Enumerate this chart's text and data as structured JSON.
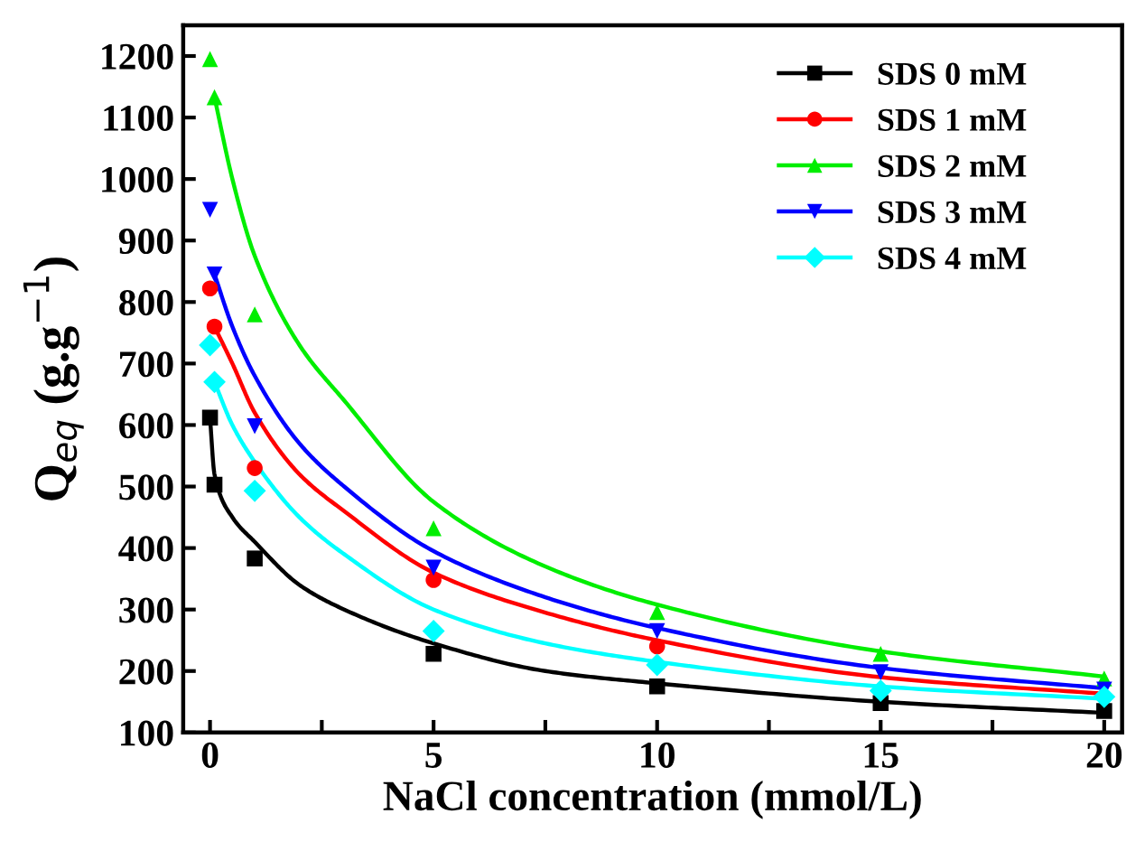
{
  "chart_data": {
    "type": "scatter",
    "xlabel": "NaCl concentration (mmol/L)",
    "ylabel": "Q$_{eq}$ (g.g$^{−1}$)",
    "x": [
      0,
      0.1,
      1,
      5,
      10,
      15,
      20
    ],
    "xlim": [
      -0.6,
      20.4
    ],
    "ylim": [
      100,
      1250
    ],
    "xticks": [
      0,
      {
        "value": 2.5,
        "label": null
      },
      5,
      {
        "value": 7.5,
        "label": null
      },
      10,
      {
        "value": 12.5,
        "label": null
      },
      15,
      {
        "value": 17.5,
        "label": null
      },
      20
    ],
    "yticks": [
      100,
      200,
      300,
      400,
      500,
      600,
      700,
      800,
      900,
      1000,
      1100,
      1200
    ],
    "legend": "top right",
    "grid": false,
    "series": [
      {
        "name": "SDS 0 mM",
        "color": "#000000",
        "marker": "square",
        "values": [
          612,
          503,
          383,
          228,
          175,
          148,
          135
        ]
      },
      {
        "name": "SDS 1 mM",
        "color": "#ff0000",
        "marker": "circle",
        "values": [
          822,
          760,
          530,
          348,
          240,
          null,
          null
        ]
      },
      {
        "name": "SDS 2 mM",
        "color": "#00ee00",
        "marker": "triangle",
        "values": [
          1195,
          1133,
          780,
          432,
          296,
          228,
          188
        ]
      },
      {
        "name": "SDS 3 mM",
        "color": "#0000ff",
        "marker": "triangle_down",
        "values": [
          950,
          845,
          598,
          368,
          265,
          198,
          170
        ]
      },
      {
        "name": "SDS 4 mM",
        "color": "#00ffff",
        "marker": "diamond",
        "values": [
          730,
          670,
          493,
          265,
          210,
          168,
          158
        ]
      },
      {
        "type": "line",
        "color": "#000000",
        "x": [
          0,
          0.1,
          0.5,
          1,
          2,
          3,
          5,
          7.5,
          10,
          15,
          20
        ],
        "values": [
          612,
          520,
          450,
          410,
          340,
          300,
          245,
          200,
          180,
          150,
          132
        ]
      },
      {
        "type": "line",
        "color": "#ff0000",
        "x": [
          0.1,
          0.5,
          1,
          2,
          3,
          5,
          7.5,
          10,
          15,
          20
        ],
        "values": [
          760,
          700,
          620,
          520,
          460,
          360,
          295,
          250,
          190,
          163
        ]
      },
      {
        "type": "line",
        "color": "#00ee00",
        "x": [
          0.1,
          0.5,
          1,
          2,
          3,
          5,
          7.5,
          10,
          15,
          20
        ],
        "values": [
          1133,
          1000,
          875,
          730,
          640,
          475,
          370,
          308,
          232,
          191
        ]
      },
      {
        "type": "line",
        "color": "#0000ff",
        "x": [
          0.1,
          0.5,
          1,
          2,
          3,
          5,
          7.5,
          10,
          15,
          20
        ],
        "values": [
          845,
          760,
          680,
          570,
          500,
          395,
          320,
          270,
          205,
          172
        ]
      },
      {
        "type": "line",
        "color": "#00ffff",
        "x": [
          0.1,
          0.5,
          1,
          2,
          3,
          5,
          7.5,
          10,
          15,
          20
        ],
        "values": [
          670,
          600,
          540,
          450,
          390,
          300,
          245,
          215,
          175,
          155
        ]
      }
    ]
  }
}
